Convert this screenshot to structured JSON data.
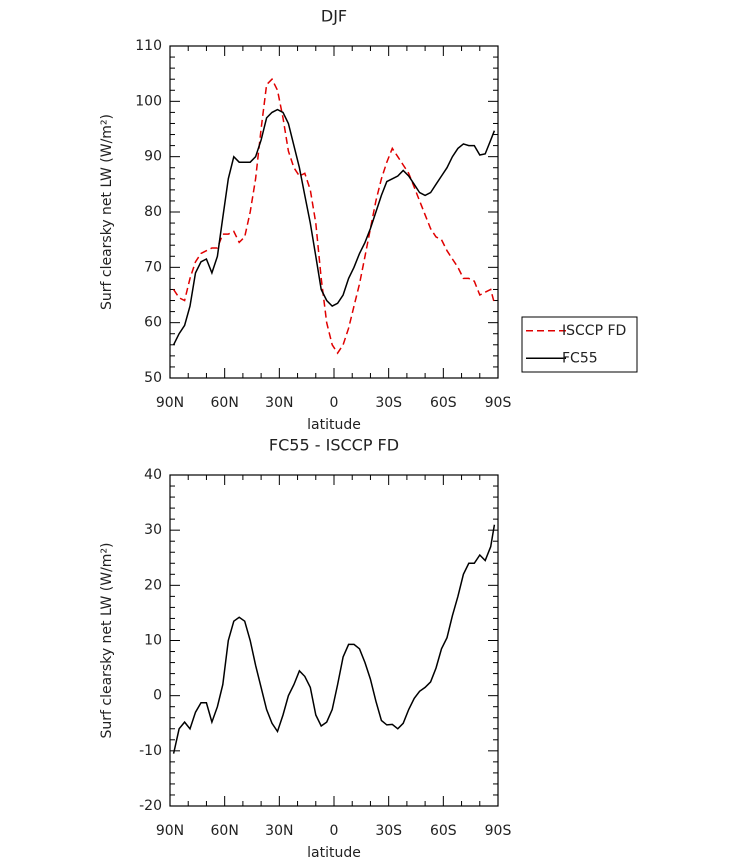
{
  "chart_data": [
    {
      "type": "line",
      "title": "DJF",
      "xlabel": "latitude",
      "ylabel": "Surf clearsky net LW (W/m²)",
      "x": [
        88,
        85,
        82,
        79,
        76,
        73,
        70,
        67,
        64,
        61,
        58,
        55,
        52,
        49,
        46,
        43,
        40,
        37,
        34,
        31,
        28,
        25,
        22,
        19,
        16,
        13,
        10,
        7,
        4,
        1,
        -2,
        -5,
        -8,
        -11,
        -14,
        -17,
        -20,
        -23,
        -26,
        -29,
        -32,
        -35,
        -38,
        -41,
        -44,
        -47,
        -50,
        -53,
        -56,
        -59,
        -62,
        -65,
        -68,
        -71,
        -74,
        -77,
        -80,
        -83,
        -86,
        -88
      ],
      "series": [
        {
          "name": "ISCCP FD",
          "color": "#e00000",
          "style": "dashed",
          "values": [
            66,
            64.5,
            64,
            68,
            71,
            72.5,
            73,
            73.5,
            73.5,
            76,
            76,
            76.5,
            74.5,
            75.5,
            80,
            86,
            95,
            103,
            104,
            102,
            97,
            91,
            88,
            86.5,
            87,
            84,
            78,
            68,
            60,
            56,
            54.5,
            56,
            59,
            63,
            67,
            72,
            77,
            82,
            86,
            89,
            91.5,
            90,
            88.5,
            87,
            84.5,
            82,
            79.5,
            77,
            75.5,
            75,
            73,
            71.5,
            70,
            68,
            68,
            67.5,
            65,
            65.5,
            66,
            63.5
          ]
        },
        {
          "name": "FC55",
          "color": "#000000",
          "style": "solid",
          "values": [
            56,
            58,
            59.5,
            63,
            69,
            71,
            71.5,
            69,
            72,
            79,
            86,
            90,
            89,
            89,
            89,
            90,
            93,
            97,
            98,
            98.5,
            98,
            96,
            92,
            88,
            83,
            78,
            72,
            66,
            64,
            63,
            63.5,
            65,
            68,
            70,
            72.5,
            74.5,
            77,
            80,
            83,
            85.5,
            86,
            86.5,
            87.5,
            86.5,
            85,
            83.5,
            83,
            83.5,
            85,
            86.5,
            88,
            90,
            91.5,
            92.3,
            92,
            92,
            90.3,
            90.5,
            93,
            94.7
          ]
        }
      ],
      "xlim": [
        90,
        -90
      ],
      "xticks": [
        {
          "value": 90,
          "label": "90N"
        },
        {
          "value": 60,
          "label": "60N"
        },
        {
          "value": 30,
          "label": "30N"
        },
        0,
        {
          "value": -30,
          "label": "30S"
        },
        {
          "value": -60,
          "label": "60S"
        },
        {
          "value": -90,
          "label": "90S"
        }
      ],
      "ylim": [
        50,
        110
      ],
      "yticks": [
        50,
        60,
        70,
        80,
        90,
        100,
        110
      ],
      "legend": "right"
    },
    {
      "type": "line",
      "title": "FC55 - ISCCP FD",
      "xlabel": "latitude",
      "ylabel": "Surf clearsky net LW (W/m²)",
      "x": [
        88,
        85,
        82,
        79,
        76,
        73,
        70,
        67,
        64,
        61,
        58,
        55,
        52,
        49,
        46,
        43,
        40,
        37,
        34,
        31,
        28,
        25,
        22,
        19,
        16,
        13,
        10,
        7,
        4,
        1,
        -2,
        -5,
        -8,
        -11,
        -14,
        -17,
        -20,
        -23,
        -26,
        -29,
        -32,
        -35,
        -38,
        -41,
        -44,
        -47,
        -50,
        -53,
        -56,
        -59,
        -62,
        -65,
        -68,
        -71,
        -74,
        -77,
        -80,
        -83,
        -86,
        -88
      ],
      "series": [
        {
          "color": "#000000",
          "style": "solid",
          "values": [
            -10.5,
            -6,
            -4.8,
            -6,
            -3,
            -1.3,
            -1.3,
            -4.8,
            -2,
            2,
            10,
            13.5,
            14.2,
            13.5,
            10,
            5.5,
            1.5,
            -2.5,
            -5,
            -6.5,
            -3.5,
            0,
            2,
            4.5,
            3.5,
            1.5,
            -3.5,
            -5.5,
            -4.8,
            -2.5,
            2,
            7,
            9.3,
            9.3,
            8.5,
            6,
            3,
            -1,
            -4.5,
            -5.3,
            -5.2,
            -6,
            -5,
            -2.5,
            -0.5,
            0.8,
            1.5,
            2.5,
            5,
            8.5,
            10.5,
            14.5,
            18,
            22,
            24,
            24,
            25.5,
            24.5,
            27,
            31
          ]
        }
      ],
      "xlim": [
        90,
        -90
      ],
      "xticks": [
        {
          "value": 90,
          "label": "90N"
        },
        {
          "value": 60,
          "label": "60N"
        },
        {
          "value": 30,
          "label": "30N"
        },
        0,
        {
          "value": -30,
          "label": "30S"
        },
        {
          "value": -60,
          "label": "60S"
        },
        {
          "value": -90,
          "label": "90S"
        }
      ],
      "ylim": [
        -20,
        40
      ],
      "yticks": [
        -20,
        -10,
        0,
        10,
        20,
        30,
        40
      ]
    }
  ]
}
